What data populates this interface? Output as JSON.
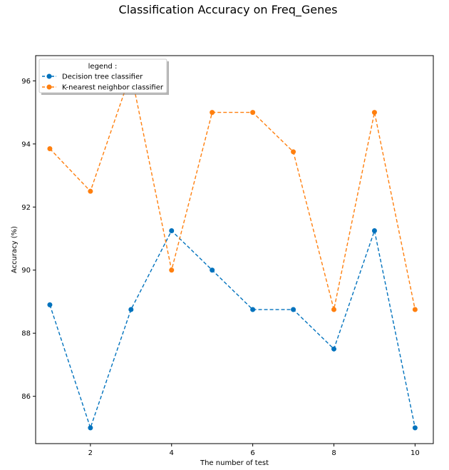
{
  "chart_data": {
    "type": "line",
    "title": "Classification Accuracy on Freq_Genes",
    "xlabel": "The number of test",
    "ylabel": "Accuracy (%)",
    "x": [
      1,
      2,
      3,
      4,
      5,
      6,
      7,
      8,
      9,
      10
    ],
    "xlim": [
      0.65,
      10.45
    ],
    "ylim": [
      84.5,
      96.8
    ],
    "xticks": [
      2,
      4,
      6,
      8,
      10
    ],
    "yticks": [
      86,
      88,
      90,
      92,
      94,
      96
    ],
    "grid": false,
    "legend": {
      "title": "legend :",
      "placement": "top-left"
    },
    "series": [
      {
        "name": "Decision tree classifier",
        "color": "#0072bd",
        "linestyle": "dashed",
        "marker": "circle",
        "values": [
          88.9,
          85.0,
          88.75,
          91.25,
          90.0,
          88.75,
          88.75,
          87.5,
          91.25,
          85.0
        ]
      },
      {
        "name": "K-nearest neighbor classifier",
        "color": "#ff7f0e",
        "linestyle": "dashed",
        "marker": "circle",
        "values": [
          93.85,
          92.5,
          96.25,
          90.0,
          95.0,
          95.0,
          93.75,
          88.75,
          95.0,
          88.75
        ]
      }
    ]
  }
}
